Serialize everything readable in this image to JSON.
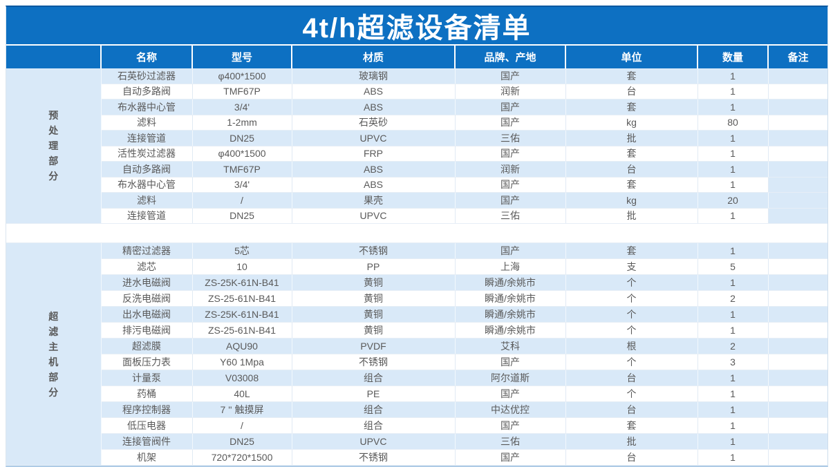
{
  "title": "4t/h超滤设备清单",
  "columns": [
    "名称",
    "型号",
    "材质",
    "品牌、产地",
    "单位",
    "数量",
    "备注"
  ],
  "sections": [
    {
      "label": "预处理部分",
      "remark_blue_rows": [
        7,
        8,
        9,
        10
      ],
      "rows": [
        [
          "石英砂过滤器",
          "φ400*1500",
          "玻璃钢",
          "国产",
          "套",
          "1",
          ""
        ],
        [
          "自动多路阀",
          "TMF67P",
          "ABS",
          "润新",
          "台",
          "1",
          ""
        ],
        [
          "布水器中心管",
          "3/4'",
          "ABS",
          "国产",
          "套",
          "1",
          ""
        ],
        [
          "滤料",
          "1-2mm",
          "石英砂",
          "国产",
          "kg",
          "80",
          ""
        ],
        [
          "连接管道",
          "DN25",
          "UPVC",
          "三佑",
          "批",
          "1",
          ""
        ],
        [
          "活性炭过滤器",
          "φ400*1500",
          "FRP",
          "国产",
          "套",
          "1",
          ""
        ],
        [
          "自动多路阀",
          "TMF67P",
          "ABS",
          "润新",
          "台",
          "1",
          ""
        ],
        [
          "布水器中心管",
          "3/4'",
          "ABS",
          "国产",
          "套",
          "1",
          ""
        ],
        [
          "滤料",
          "/",
          "果壳",
          "国产",
          "kg",
          "20",
          ""
        ],
        [
          "连接管道",
          "DN25",
          "UPVC",
          "三佑",
          "批",
          "1",
          ""
        ]
      ]
    },
    {
      "label": "超滤主机部分",
      "remark_blue_rows": [],
      "rows": [
        [
          "精密过滤器",
          "5芯",
          "不锈钢",
          "国产",
          "套",
          "1",
          ""
        ],
        [
          "滤芯",
          "10",
          "PP",
          "上海",
          "支",
          "5",
          ""
        ],
        [
          "进水电磁阀",
          "ZS-25K-61N-B41",
          "黄铜",
          "瞬通/余姚市",
          "个",
          "1",
          ""
        ],
        [
          "反洗电磁阀",
          "ZS-25-61N-B41",
          "黄铜",
          "瞬通/余姚市",
          "个",
          "2",
          ""
        ],
        [
          "出水电磁阀",
          "ZS-25K-61N-B41",
          "黄铜",
          "瞬通/余姚市",
          "个",
          "1",
          ""
        ],
        [
          "排污电磁阀",
          "ZS-25-61N-B41",
          "黄铜",
          "瞬通/余姚市",
          "个",
          "1",
          ""
        ],
        [
          "超滤膜",
          "AQU90",
          "PVDF",
          "艾科",
          "根",
          "2",
          ""
        ],
        [
          "面板压力表",
          "Y60 1Mpa",
          "不锈钢",
          "国产",
          "个",
          "3",
          ""
        ],
        [
          "计量泵",
          "V03008",
          "组合",
          "阿尔道斯",
          "台",
          "1",
          ""
        ],
        [
          "药桶",
          "40L",
          "PE",
          "国产",
          "个",
          "1",
          ""
        ],
        [
          "程序控制器",
          "7 '' 触摸屏",
          "组合",
          "中达优控",
          "台",
          "1",
          ""
        ],
        [
          "低压电器",
          "/",
          "组合",
          "国产",
          "套",
          "1",
          ""
        ],
        [
          "连接管阀件",
          "DN25",
          "UPVC",
          "三佑",
          "批",
          "1",
          ""
        ],
        [
          "机架",
          "720*720*1500",
          "不锈钢",
          "国产",
          "台",
          "1",
          ""
        ]
      ]
    }
  ],
  "colors": {
    "header_blue": "#0d70c2",
    "band_blue": "#d9e9f8",
    "text_grey": "#595959",
    "top_border": "#0a58a0"
  }
}
